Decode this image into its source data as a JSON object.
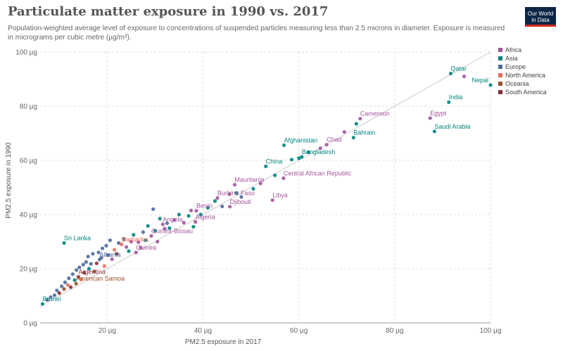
{
  "title": "Particulate matter exposure in 1990 vs. 2017",
  "subtitle": "Population-weighted average level of exposure to concentrations of suspended particles measuring less than 2.5 microns in diameter. Exposure is measured in micrograms per cubic metre (µg/m³).",
  "logo": {
    "line1": "Our World",
    "line2": "in Data"
  },
  "chart_data": {
    "type": "scatter",
    "xlabel": "PM2.5 exposure in 2017",
    "ylabel": "PM2.5 exposure in 1990",
    "xlim": [
      6,
      100
    ],
    "ylim": [
      0,
      100
    ],
    "x_ticks": [
      {
        "v": 20,
        "t": "20 µg"
      },
      {
        "v": 40,
        "t": "40 µg"
      },
      {
        "v": 60,
        "t": "60 µg"
      },
      {
        "v": 80,
        "t": "80 µg"
      },
      {
        "v": 100,
        "t": "100 µg"
      }
    ],
    "y_ticks": [
      {
        "v": 0,
        "t": "0 µg"
      },
      {
        "v": 20,
        "t": "20 µg"
      },
      {
        "v": 40,
        "t": "40 µg"
      },
      {
        "v": 60,
        "t": "60 µg"
      },
      {
        "v": 80,
        "t": "80 µg"
      },
      {
        "v": 100,
        "t": "100 µg"
      }
    ],
    "grid": true,
    "diagonal": true,
    "legend_position": "top-right",
    "regions": [
      {
        "name": "Africa",
        "color": "#a2559c"
      },
      {
        "name": "Asia",
        "color": "#00847e"
      },
      {
        "name": "Europe",
        "color": "#4c6a9c"
      },
      {
        "name": "North America",
        "color": "#e56e5a"
      },
      {
        "name": "Oceania",
        "color": "#9a5129"
      },
      {
        "name": "South America",
        "color": "#883039"
      }
    ],
    "points": [
      {
        "x": 91.7,
        "y": 92.1,
        "r": "Asia",
        "label": "Qatar"
      },
      {
        "x": 100,
        "y": 87.8,
        "r": "Asia",
        "label": "Nepal"
      },
      {
        "x": 91.3,
        "y": 81.5,
        "r": "Asia",
        "label": "India"
      },
      {
        "x": 87.4,
        "y": 75.6,
        "r": "Africa",
        "label": "Egypt"
      },
      {
        "x": 88.3,
        "y": 70.7,
        "r": "Asia",
        "label": "Saudi Arabia"
      },
      {
        "x": 72.8,
        "y": 75.4,
        "r": "Africa",
        "label": "Cameroon"
      },
      {
        "x": 71.4,
        "y": 68.4,
        "r": "Asia",
        "label": "Bahrain"
      },
      {
        "x": 65.8,
        "y": 65.8,
        "r": "Africa",
        "label": "Chad"
      },
      {
        "x": 56.9,
        "y": 65.6,
        "r": "Asia",
        "label": "Afghanistan"
      },
      {
        "x": 60.6,
        "y": 61.3,
        "r": "Asia",
        "label": "Bangladesh"
      },
      {
        "x": 53.1,
        "y": 57.8,
        "r": "Asia",
        "label": "China"
      },
      {
        "x": 56.8,
        "y": 53.4,
        "r": "Africa",
        "label": "Central African Republic"
      },
      {
        "x": 46.6,
        "y": 51.0,
        "r": "Africa",
        "label": "Mauritania"
      },
      {
        "x": 43.0,
        "y": 46.1,
        "r": "Africa",
        "label": "Burkina Faso"
      },
      {
        "x": 54.5,
        "y": 45.3,
        "r": "Africa",
        "label": "Libya"
      },
      {
        "x": 45.6,
        "y": 42.9,
        "r": "Africa",
        "label": "Djibouti"
      },
      {
        "x": 38.6,
        "y": 41.4,
        "r": "Africa",
        "label": "Benin"
      },
      {
        "x": 38.4,
        "y": 37.3,
        "r": "Africa",
        "label": "Algeria"
      },
      {
        "x": 31.6,
        "y": 36.4,
        "r": "Africa",
        "label": "Angola"
      },
      {
        "x": 29.2,
        "y": 32.1,
        "r": "Africa",
        "label": "Guinea-Bissau"
      },
      {
        "x": 11.0,
        "y": 29.5,
        "r": "Asia",
        "label": "Sri Lanka"
      },
      {
        "x": 23.0,
        "y": 29.0,
        "r": "North America",
        "label": "Barbados"
      },
      {
        "x": 26.0,
        "y": 26.0,
        "r": "Africa",
        "label": "Guinea"
      },
      {
        "x": 18.4,
        "y": 23.4,
        "r": "Europe",
        "label": "Albania"
      },
      {
        "x": 14.0,
        "y": 17.0,
        "r": "South America",
        "label": "Argentina"
      },
      {
        "x": 13.5,
        "y": 14.5,
        "r": "Oceania",
        "label": "American Samoa"
      },
      {
        "x": 6.5,
        "y": 7.0,
        "r": "Asia",
        "label": "Brunei"
      },
      {
        "x": 7.5,
        "y": 8.5,
        "r": "Europe"
      },
      {
        "x": 8.2,
        "y": 9.5,
        "r": "Europe"
      },
      {
        "x": 9.0,
        "y": 10.2,
        "r": "Europe"
      },
      {
        "x": 9.5,
        "y": 12.0,
        "r": "Europe"
      },
      {
        "x": 10.0,
        "y": 11.0,
        "r": "South America"
      },
      {
        "x": 10.5,
        "y": 13.5,
        "r": "Europe"
      },
      {
        "x": 11.0,
        "y": 12.5,
        "r": "Oceania"
      },
      {
        "x": 11.2,
        "y": 15.0,
        "r": "Europe"
      },
      {
        "x": 11.8,
        "y": 14.0,
        "r": "North America"
      },
      {
        "x": 12.0,
        "y": 16.5,
        "r": "Europe"
      },
      {
        "x": 12.4,
        "y": 13.2,
        "r": "South America"
      },
      {
        "x": 12.8,
        "y": 18.0,
        "r": "Europe"
      },
      {
        "x": 13.2,
        "y": 15.8,
        "r": "Asia"
      },
      {
        "x": 13.6,
        "y": 19.5,
        "r": "Europe"
      },
      {
        "x": 14.2,
        "y": 20.5,
        "r": "Europe"
      },
      {
        "x": 14.6,
        "y": 16.0,
        "r": "North America"
      },
      {
        "x": 15.0,
        "y": 21.5,
        "r": "Europe"
      },
      {
        "x": 15.2,
        "y": 18.5,
        "r": "South America"
      },
      {
        "x": 15.6,
        "y": 22.5,
        "r": "Europe"
      },
      {
        "x": 16.0,
        "y": 24.5,
        "r": "Europe"
      },
      {
        "x": 16.2,
        "y": 20.0,
        "r": "Asia"
      },
      {
        "x": 16.6,
        "y": 21.8,
        "r": "Europe"
      },
      {
        "x": 17.0,
        "y": 25.5,
        "r": "Europe"
      },
      {
        "x": 17.3,
        "y": 19.0,
        "r": "Oceania"
      },
      {
        "x": 17.8,
        "y": 22.0,
        "r": "South America"
      },
      {
        "x": 18.2,
        "y": 26.0,
        "r": "Europe"
      },
      {
        "x": 18.8,
        "y": 24.0,
        "r": "Europe"
      },
      {
        "x": 19.0,
        "y": 27.5,
        "r": "Europe"
      },
      {
        "x": 19.4,
        "y": 21.0,
        "r": "North America"
      },
      {
        "x": 19.8,
        "y": 28.5,
        "r": "Europe"
      },
      {
        "x": 20.2,
        "y": 25.0,
        "r": "Europe"
      },
      {
        "x": 20.6,
        "y": 30.5,
        "r": "Europe"
      },
      {
        "x": 21.0,
        "y": 23.5,
        "r": "Africa"
      },
      {
        "x": 21.5,
        "y": 27.0,
        "r": "North America"
      },
      {
        "x": 22.0,
        "y": 25.5,
        "r": "South America"
      },
      {
        "x": 22.4,
        "y": 29.5,
        "r": "Europe"
      },
      {
        "x": 23.5,
        "y": 31.0,
        "r": "Europe"
      },
      {
        "x": 24.0,
        "y": 28.0,
        "r": "Africa"
      },
      {
        "x": 24.5,
        "y": 26.5,
        "r": "Asia"
      },
      {
        "x": 25.0,
        "y": 30.0,
        "r": "Africa"
      },
      {
        "x": 25.5,
        "y": 32.5,
        "r": "Asia"
      },
      {
        "x": 26.5,
        "y": 29.8,
        "r": "Africa"
      },
      {
        "x": 27.0,
        "y": 27.8,
        "r": "Africa"
      },
      {
        "x": 27.5,
        "y": 33.5,
        "r": "Europe"
      },
      {
        "x": 28.0,
        "y": 30.5,
        "r": "Asia"
      },
      {
        "x": 28.5,
        "y": 35.8,
        "r": "Asia"
      },
      {
        "x": 29.6,
        "y": 42.0,
        "r": "Europe"
      },
      {
        "x": 30.0,
        "y": 34.0,
        "r": "Asia"
      },
      {
        "x": 30.5,
        "y": 30.0,
        "r": "Africa"
      },
      {
        "x": 31.0,
        "y": 38.5,
        "r": "Asia"
      },
      {
        "x": 32.0,
        "y": 34.8,
        "r": "Africa"
      },
      {
        "x": 32.5,
        "y": 36.8,
        "r": "Europe"
      },
      {
        "x": 33.0,
        "y": 35.0,
        "r": "Asia"
      },
      {
        "x": 34.0,
        "y": 38.0,
        "r": "Africa"
      },
      {
        "x": 35.0,
        "y": 40.0,
        "r": "Asia"
      },
      {
        "x": 36.0,
        "y": 37.0,
        "r": "Africa"
      },
      {
        "x": 37.0,
        "y": 39.5,
        "r": "Asia"
      },
      {
        "x": 37.5,
        "y": 41.5,
        "r": "Africa"
      },
      {
        "x": 38.0,
        "y": 35.5,
        "r": "Asia"
      },
      {
        "x": 39.5,
        "y": 40.0,
        "r": "Asia"
      },
      {
        "x": 41.0,
        "y": 42.5,
        "r": "Asia"
      },
      {
        "x": 42.5,
        "y": 45.0,
        "r": "Asia"
      },
      {
        "x": 44.0,
        "y": 43.0,
        "r": "Europe"
      },
      {
        "x": 45.5,
        "y": 47.5,
        "r": "Africa"
      },
      {
        "x": 47.0,
        "y": 48.0,
        "r": "Asia"
      },
      {
        "x": 48.0,
        "y": 46.5,
        "r": "Europe"
      },
      {
        "x": 50.5,
        "y": 49.5,
        "r": "Asia"
      },
      {
        "x": 52.0,
        "y": 51.5,
        "r": "Africa"
      },
      {
        "x": 55.0,
        "y": 54.5,
        "r": "Asia"
      },
      {
        "x": 58.5,
        "y": 60.3,
        "r": "Asia"
      },
      {
        "x": 60.0,
        "y": 60.8,
        "r": "Asia"
      },
      {
        "x": 62.0,
        "y": 63.0,
        "r": "Asia"
      },
      {
        "x": 64.5,
        "y": 64.5,
        "r": "Africa"
      },
      {
        "x": 69.5,
        "y": 70.5,
        "r": "Africa"
      },
      {
        "x": 72.0,
        "y": 73.5,
        "r": "Asia"
      },
      {
        "x": 94.5,
        "y": 91.0,
        "r": "Africa"
      }
    ]
  }
}
